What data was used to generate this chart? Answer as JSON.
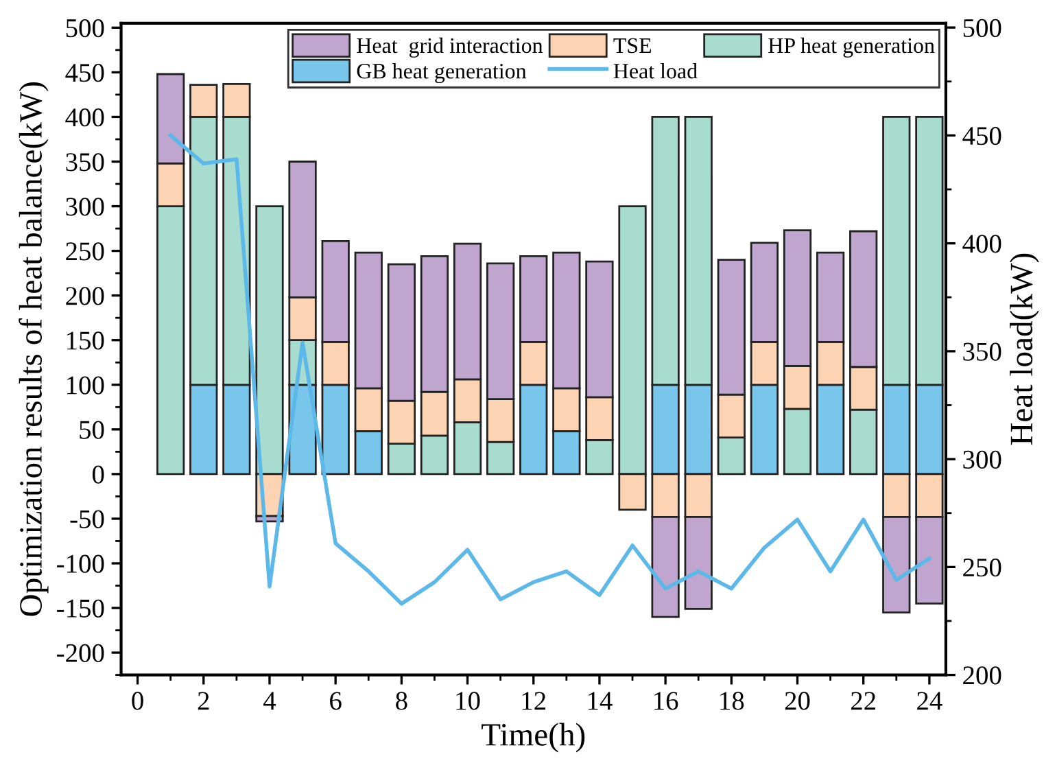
{
  "chart_data": {
    "type": "bar",
    "stacked": true,
    "xlabel": "Time(h)",
    "ylabel": "Optimization results of heat balance(kW)",
    "y2label": "Heat load(kW)",
    "x": [
      1,
      2,
      3,
      4,
      5,
      6,
      7,
      8,
      9,
      10,
      11,
      12,
      13,
      14,
      15,
      16,
      17,
      18,
      19,
      20,
      21,
      22,
      23,
      24
    ],
    "series": [
      {
        "name": "GB heat generation",
        "color": "#78c6ec",
        "values": [
          null,
          100,
          100,
          null,
          100,
          100,
          48,
          null,
          null,
          null,
          null,
          100,
          48,
          null,
          null,
          100,
          100,
          null,
          100,
          null,
          100,
          null,
          100,
          100
        ]
      },
      {
        "name": "HP heat generation",
        "color": "#a8dccf",
        "values": [
          300,
          300,
          300,
          300,
          50,
          null,
          null,
          34,
          43,
          58,
          36,
          null,
          null,
          38,
          300,
          300,
          300,
          41,
          null,
          73,
          null,
          72,
          300,
          300
        ]
      },
      {
        "name": "TSE",
        "color": "#fcd3b3",
        "values": [
          48,
          36,
          37,
          -47,
          48,
          48,
          48,
          48,
          49,
          48,
          48,
          48,
          48,
          48,
          -40,
          -48,
          -48,
          48,
          48,
          48,
          48,
          48,
          -48,
          -48
        ]
      },
      {
        "name": "Heat  grid interaction",
        "color": "#c0a6cf",
        "values": [
          100,
          null,
          null,
          -6,
          152,
          113,
          152,
          153,
          152,
          152,
          152,
          96,
          152,
          152,
          null,
          -112,
          -103,
          151,
          111,
          152,
          100,
          152,
          -107,
          -97
        ]
      },
      {
        "name": "Heat load",
        "type": "line",
        "axis": "y2",
        "color": "#5bb8e8",
        "values": [
          450,
          437,
          439,
          241,
          354,
          261,
          248,
          233,
          243,
          258,
          235,
          243,
          248,
          237,
          260,
          240,
          248,
          240,
          259,
          272,
          248,
          272,
          244,
          254
        ]
      }
    ],
    "xlim": [
      -0.5,
      24.5
    ],
    "xticks": [
      0,
      2,
      4,
      6,
      8,
      10,
      12,
      14,
      16,
      18,
      20,
      22,
      24
    ],
    "ylim": [
      -225,
      505
    ],
    "yticks": [
      -200,
      -150,
      -100,
      -50,
      0,
      50,
      100,
      150,
      200,
      250,
      300,
      350,
      400,
      450,
      500
    ],
    "y2lim": [
      200,
      502
    ],
    "y2ticks": [
      200,
      250,
      300,
      350,
      400,
      450,
      500
    ],
    "legend": "top right",
    "grid": false
  }
}
